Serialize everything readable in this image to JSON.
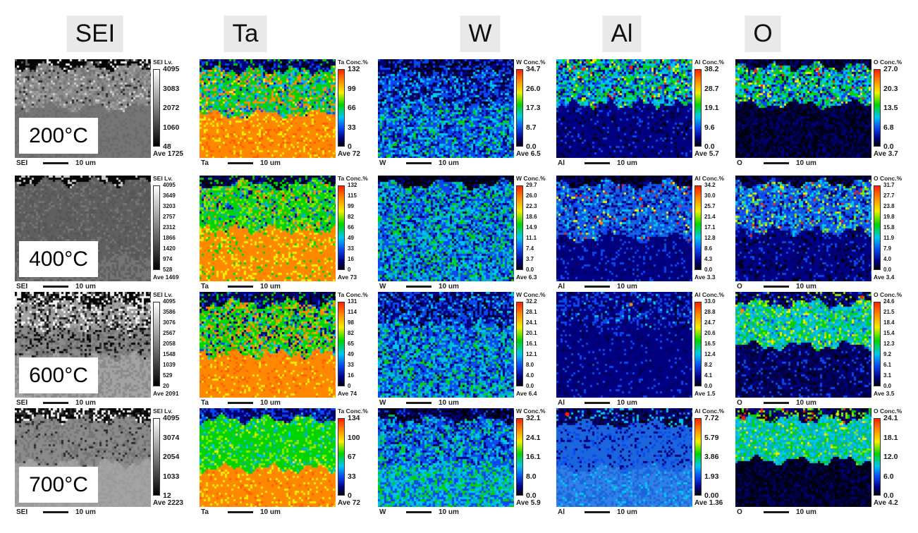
{
  "figure": {
    "columns": [
      {
        "key": "sei",
        "header": "SEI",
        "scale_title": "SEI Lv.",
        "bottom_label": "SEI",
        "scale_text": "10 um",
        "colorbar": "grayscale"
      },
      {
        "key": "ta",
        "header": "Ta",
        "scale_title": "Ta Conc.%",
        "bottom_label": "Ta",
        "scale_text": "10 um",
        "colorbar": "jet"
      },
      {
        "key": "w",
        "header": "W",
        "scale_title": "W Conc.%",
        "bottom_label": "W",
        "scale_text": "10 um",
        "colorbar": "jet"
      },
      {
        "key": "al",
        "header": "Al",
        "scale_title": "Al Conc.%",
        "bottom_label": "Al",
        "scale_text": "10 um",
        "colorbar": "jet"
      },
      {
        "key": "o",
        "header": "O",
        "scale_title": "O Conc.%",
        "bottom_label": "O",
        "scale_text": "10 um",
        "colorbar": "jet"
      }
    ],
    "rows": [
      {
        "temperature": "200°C",
        "cells": [
          {
            "column": "SEI",
            "ticks": [
              "4095",
              "3083",
              "2072",
              "1060",
              "48"
            ],
            "ave": "Ave 1725"
          },
          {
            "column": "Ta",
            "ticks": [
              "132",
              "99",
              "66",
              "33",
              "0"
            ],
            "ave": "Ave 72"
          },
          {
            "column": "W",
            "ticks": [
              "34.7",
              "26.0",
              "17.3",
              "8.7",
              "0.0"
            ],
            "ave": "Ave 6.5"
          },
          {
            "column": "Al",
            "ticks": [
              "38.2",
              "28.7",
              "19.1",
              "9.6",
              "0.0"
            ],
            "ave": "Ave 5.7"
          },
          {
            "column": "O",
            "ticks": [
              "27.0",
              "20.3",
              "13.5",
              "6.8",
              "0.0"
            ],
            "ave": "Ave 3.7"
          }
        ]
      },
      {
        "temperature": "400°C",
        "cells": [
          {
            "column": "SEI",
            "ticks": [
              "4095",
              "3649",
              "3203",
              "2757",
              "2312",
              "1866",
              "1420",
              "974",
              "528"
            ],
            "ave": "Ave 1469"
          },
          {
            "column": "Ta",
            "ticks": [
              "132",
              "115",
              "99",
              "82",
              "66",
              "49",
              "33",
              "16",
              "0"
            ],
            "ave": "Ave 73"
          },
          {
            "column": "W",
            "ticks": [
              "29.7",
              "26.0",
              "22.3",
              "18.6",
              "14.9",
              "11.1",
              "7.4",
              "3.7",
              "0.0"
            ],
            "ave": "Ave 6.3"
          },
          {
            "column": "Al",
            "ticks": [
              "34.2",
              "30.0",
              "25.7",
              "21.4",
              "17.1",
              "12.8",
              "8.6",
              "4.3",
              "0.0"
            ],
            "ave": "Ave 3.3"
          },
          {
            "column": "O",
            "ticks": [
              "31.7",
              "27.7",
              "23.8",
              "19.8",
              "15.8",
              "11.9",
              "7.9",
              "4.0",
              "0.0"
            ],
            "ave": "Ave 3.4"
          }
        ]
      },
      {
        "temperature": "600°C",
        "cells": [
          {
            "column": "SEI",
            "ticks": [
              "4095",
              "3586",
              "3076",
              "2567",
              "2058",
              "1548",
              "1039",
              "529",
              "20"
            ],
            "ave": "Ave 2091"
          },
          {
            "column": "Ta",
            "ticks": [
              "131",
              "114",
              "98",
              "82",
              "65",
              "49",
              "33",
              "16",
              "0"
            ],
            "ave": "Ave 74"
          },
          {
            "column": "W",
            "ticks": [
              "32.2",
              "28.1",
              "24.1",
              "20.1",
              "16.1",
              "12.1",
              "8.0",
              "4.0",
              "0.0"
            ],
            "ave": "Ave 6.4"
          },
          {
            "column": "Al",
            "ticks": [
              "33.0",
              "28.8",
              "24.7",
              "20.6",
              "16.5",
              "12.4",
              "8.2",
              "4.1",
              "0.0"
            ],
            "ave": "Ave 1.5"
          },
          {
            "column": "O",
            "ticks": [
              "24.6",
              "21.5",
              "18.4",
              "15.4",
              "12.3",
              "9.2",
              "6.1",
              "3.1",
              "0.0"
            ],
            "ave": "Ave 3.5"
          }
        ]
      },
      {
        "temperature": "700°C",
        "cells": [
          {
            "column": "SEI",
            "ticks": [
              "4095",
              "3074",
              "2054",
              "1033",
              "12"
            ],
            "ave": "Ave 2223"
          },
          {
            "column": "Ta",
            "ticks": [
              "134",
              "100",
              "67",
              "33",
              "0"
            ],
            "ave": "Ave 72"
          },
          {
            "column": "W",
            "ticks": [
              "32.1",
              "24.1",
              "16.1",
              "8.0",
              "0.0"
            ],
            "ave": "Ave 5.9"
          },
          {
            "column": "Al",
            "ticks": [
              "7.72",
              "5.79",
              "3.86",
              "1.93",
              "0.00"
            ],
            "ave": "Ave 1.36"
          },
          {
            "column": "O",
            "ticks": [
              "24.1",
              "18.1",
              "12.0",
              "6.0",
              "0.0"
            ],
            "ave": "Ave 4.2"
          }
        ]
      }
    ],
    "colors": {
      "page_bg": "#ffffff",
      "header_bg": "#e9e9e9",
      "jet": [
        "#ff1e00",
        "#ff8800",
        "#f4f000",
        "#00d400",
        "#00c8f0",
        "#0a48f0",
        "#000080",
        "#00000e"
      ],
      "grayscale": [
        "#ffffff",
        "#000000"
      ]
    }
  }
}
